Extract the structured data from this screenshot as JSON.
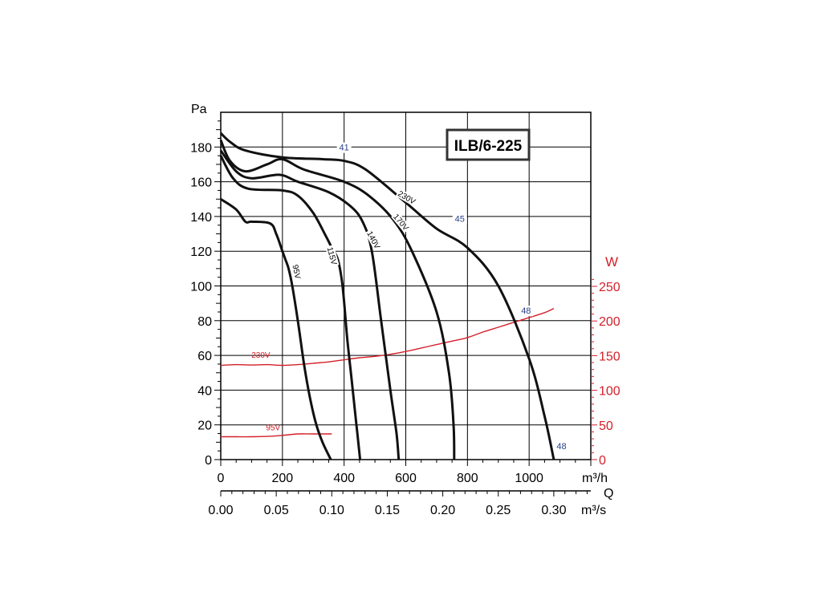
{
  "chart_data": {
    "type": "line",
    "title": "ILB/6-225",
    "x_axis": {
      "label": "m³/h",
      "range": [
        0,
        1200
      ],
      "ticks": [
        0,
        200,
        400,
        600,
        800,
        1000
      ]
    },
    "x2_axis": {
      "label": "m³/s",
      "range": [
        0,
        1200
      ],
      "ticks": [
        {
          "value": 0,
          "text": "0.00"
        },
        {
          "value": 180,
          "text": "0.05"
        },
        {
          "value": 360,
          "text": "0.10"
        },
        {
          "value": 540,
          "text": "0.15"
        },
        {
          "value": 720,
          "text": "0.20"
        },
        {
          "value": 900,
          "text": "0.25"
        },
        {
          "value": 1080,
          "text": "0.30"
        }
      ]
    },
    "q_label": "Q",
    "y_axis": {
      "label": "Pa",
      "range": [
        0,
        200
      ],
      "ticks": [
        0,
        20,
        40,
        60,
        80,
        100,
        120,
        140,
        160,
        180
      ]
    },
    "y2_axis": {
      "label": "W",
      "range": [
        0,
        250
      ],
      "ticks": [
        0,
        50,
        100,
        150,
        200,
        250
      ],
      "color": "#d4202a"
    },
    "grid": true,
    "pressure_series": [
      {
        "name": "230V",
        "points": [
          [
            0,
            188
          ],
          [
            30,
            183
          ],
          [
            80,
            178
          ],
          [
            200,
            174
          ],
          [
            330,
            173
          ],
          [
            400,
            172
          ],
          [
            470,
            167
          ],
          [
            600,
            148
          ],
          [
            700,
            133
          ],
          [
            800,
            122
          ],
          [
            900,
            100
          ],
          [
            1000,
            58
          ],
          [
            1050,
            25
          ],
          [
            1080,
            0
          ]
        ]
      },
      {
        "name": "170V",
        "points": [
          [
            0,
            184
          ],
          [
            30,
            172
          ],
          [
            80,
            166
          ],
          [
            150,
            170
          ],
          [
            200,
            173
          ],
          [
            270,
            167
          ],
          [
            400,
            160
          ],
          [
            480,
            152
          ],
          [
            560,
            138
          ],
          [
            620,
            120
          ],
          [
            700,
            85
          ],
          [
            740,
            50
          ],
          [
            755,
            20
          ],
          [
            757,
            0
          ]
        ]
      },
      {
        "name": "140V",
        "points": [
          [
            0,
            178
          ],
          [
            50,
            166
          ],
          [
            100,
            162
          ],
          [
            190,
            164
          ],
          [
            250,
            160
          ],
          [
            350,
            154
          ],
          [
            420,
            146
          ],
          [
            460,
            137
          ],
          [
            490,
            120
          ],
          [
            520,
            80
          ],
          [
            550,
            40
          ],
          [
            570,
            15
          ],
          [
            577,
            0
          ]
        ]
      },
      {
        "name": "115V",
        "points": [
          [
            0,
            175
          ],
          [
            40,
            162
          ],
          [
            90,
            156
          ],
          [
            200,
            155
          ],
          [
            250,
            152
          ],
          [
            300,
            142
          ],
          [
            340,
            129
          ],
          [
            360,
            122
          ],
          [
            380,
            115
          ],
          [
            395,
            100
          ],
          [
            410,
            70
          ],
          [
            425,
            45
          ],
          [
            440,
            20
          ],
          [
            452,
            0
          ]
        ]
      },
      {
        "name": "95V",
        "points": [
          [
            0,
            150
          ],
          [
            50,
            144
          ],
          [
            80,
            137
          ],
          [
            100,
            137
          ],
          [
            160,
            136
          ],
          [
            180,
            130
          ],
          [
            200,
            120
          ],
          [
            210,
            115
          ],
          [
            220,
            110
          ],
          [
            232,
            100
          ],
          [
            250,
            80
          ],
          [
            270,
            55
          ],
          [
            290,
            35
          ],
          [
            310,
            20
          ],
          [
            330,
            10
          ],
          [
            357,
            0
          ]
        ]
      }
    ],
    "power_series": [
      {
        "name": "230V",
        "points": [
          [
            0,
            136
          ],
          [
            50,
            137
          ],
          [
            100,
            136.5
          ],
          [
            150,
            137
          ],
          [
            200,
            136
          ],
          [
            250,
            137
          ],
          [
            300,
            139
          ],
          [
            350,
            141
          ],
          [
            400,
            144
          ],
          [
            450,
            147
          ],
          [
            500,
            149
          ],
          [
            550,
            152
          ],
          [
            600,
            156
          ],
          [
            650,
            161
          ],
          [
            700,
            166
          ],
          [
            750,
            171
          ],
          [
            800,
            176
          ],
          [
            850,
            184
          ],
          [
            900,
            191
          ],
          [
            950,
            198
          ],
          [
            1000,
            205
          ],
          [
            1050,
            212
          ],
          [
            1080,
            218
          ]
        ]
      },
      {
        "name": "95V",
        "points": [
          [
            0,
            33
          ],
          [
            50,
            33
          ],
          [
            100,
            33
          ],
          [
            150,
            33.5
          ],
          [
            200,
            35
          ],
          [
            250,
            37
          ],
          [
            300,
            37
          ],
          [
            360,
            37
          ]
        ]
      }
    ],
    "annotations": [
      {
        "text": "41",
        "x": 400,
        "y": 178
      },
      {
        "text": "45",
        "x": 775,
        "y": 137
      },
      {
        "text": "48",
        "x": 990,
        "y": 84
      },
      {
        "text": "48",
        "x": 1105,
        "y": 6
      }
    ]
  }
}
